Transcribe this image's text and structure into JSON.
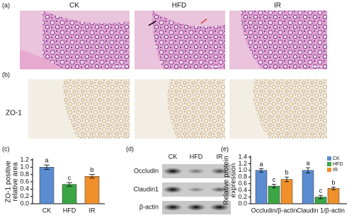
{
  "figure": {
    "panel_labels": [
      "(a)",
      "(b)",
      "(c)",
      "(d)",
      "(e)"
    ],
    "group_headers": [
      "CK",
      "HFD",
      "IR"
    ],
    "row_label": "ZO-1",
    "blot": {
      "lanes": [
        "CK",
        "HFD",
        "IR"
      ],
      "proteins": [
        "Occludin",
        "Claudin1",
        "β-actin"
      ]
    }
  },
  "chart_data": [
    {
      "type": "bar",
      "ylabel": [
        "ZO-1 positive",
        "relative area"
      ],
      "categories": [
        "CK",
        "HFD",
        "IR"
      ],
      "values": [
        1.0,
        0.53,
        0.75
      ],
      "errors": [
        0.06,
        0.05,
        0.05
      ],
      "sig_labels": [
        "a",
        "c",
        "b"
      ],
      "colors": [
        "#5b8bd0",
        "#3aa644",
        "#f0902a"
      ],
      "ylim": [
        0,
        1.2
      ],
      "yticks": [
        {
          "value": 0,
          "label": "0.0"
        },
        0.2,
        0.4,
        0.6,
        0.8,
        {
          "value": 1,
          "label": "1.0"
        },
        1.2
      ]
    },
    {
      "type": "grouped-bar",
      "ylabel": [
        "Relative protein",
        "expression"
      ],
      "categories": [
        "Occludin/β-actin",
        "Claudin 1/β-actin"
      ],
      "series": [
        {
          "name": "CK",
          "color": "#5b8bd0",
          "values": [
            1.0,
            1.0
          ],
          "errors": [
            0.05,
            0.08
          ],
          "sig_labels": [
            "a",
            "a"
          ]
        },
        {
          "name": "HFD",
          "color": "#3aa644",
          "values": [
            0.53,
            0.2
          ],
          "errors": [
            0.05,
            0.05
          ],
          "sig_labels": [
            "c",
            "c"
          ]
        },
        {
          "name": "IR",
          "color": "#f0902a",
          "values": [
            0.73,
            0.46
          ],
          "errors": [
            0.07,
            0.04
          ],
          "sig_labels": [
            "b",
            "b"
          ]
        }
      ],
      "ylim": [
        0,
        1.4
      ],
      "yticks": [
        {
          "value": 0,
          "label": "0.0"
        },
        0.2,
        0.4,
        0.6,
        0.8,
        {
          "value": 1,
          "label": "1.0"
        },
        1.2,
        1.4
      ],
      "legend": "top-right"
    }
  ]
}
